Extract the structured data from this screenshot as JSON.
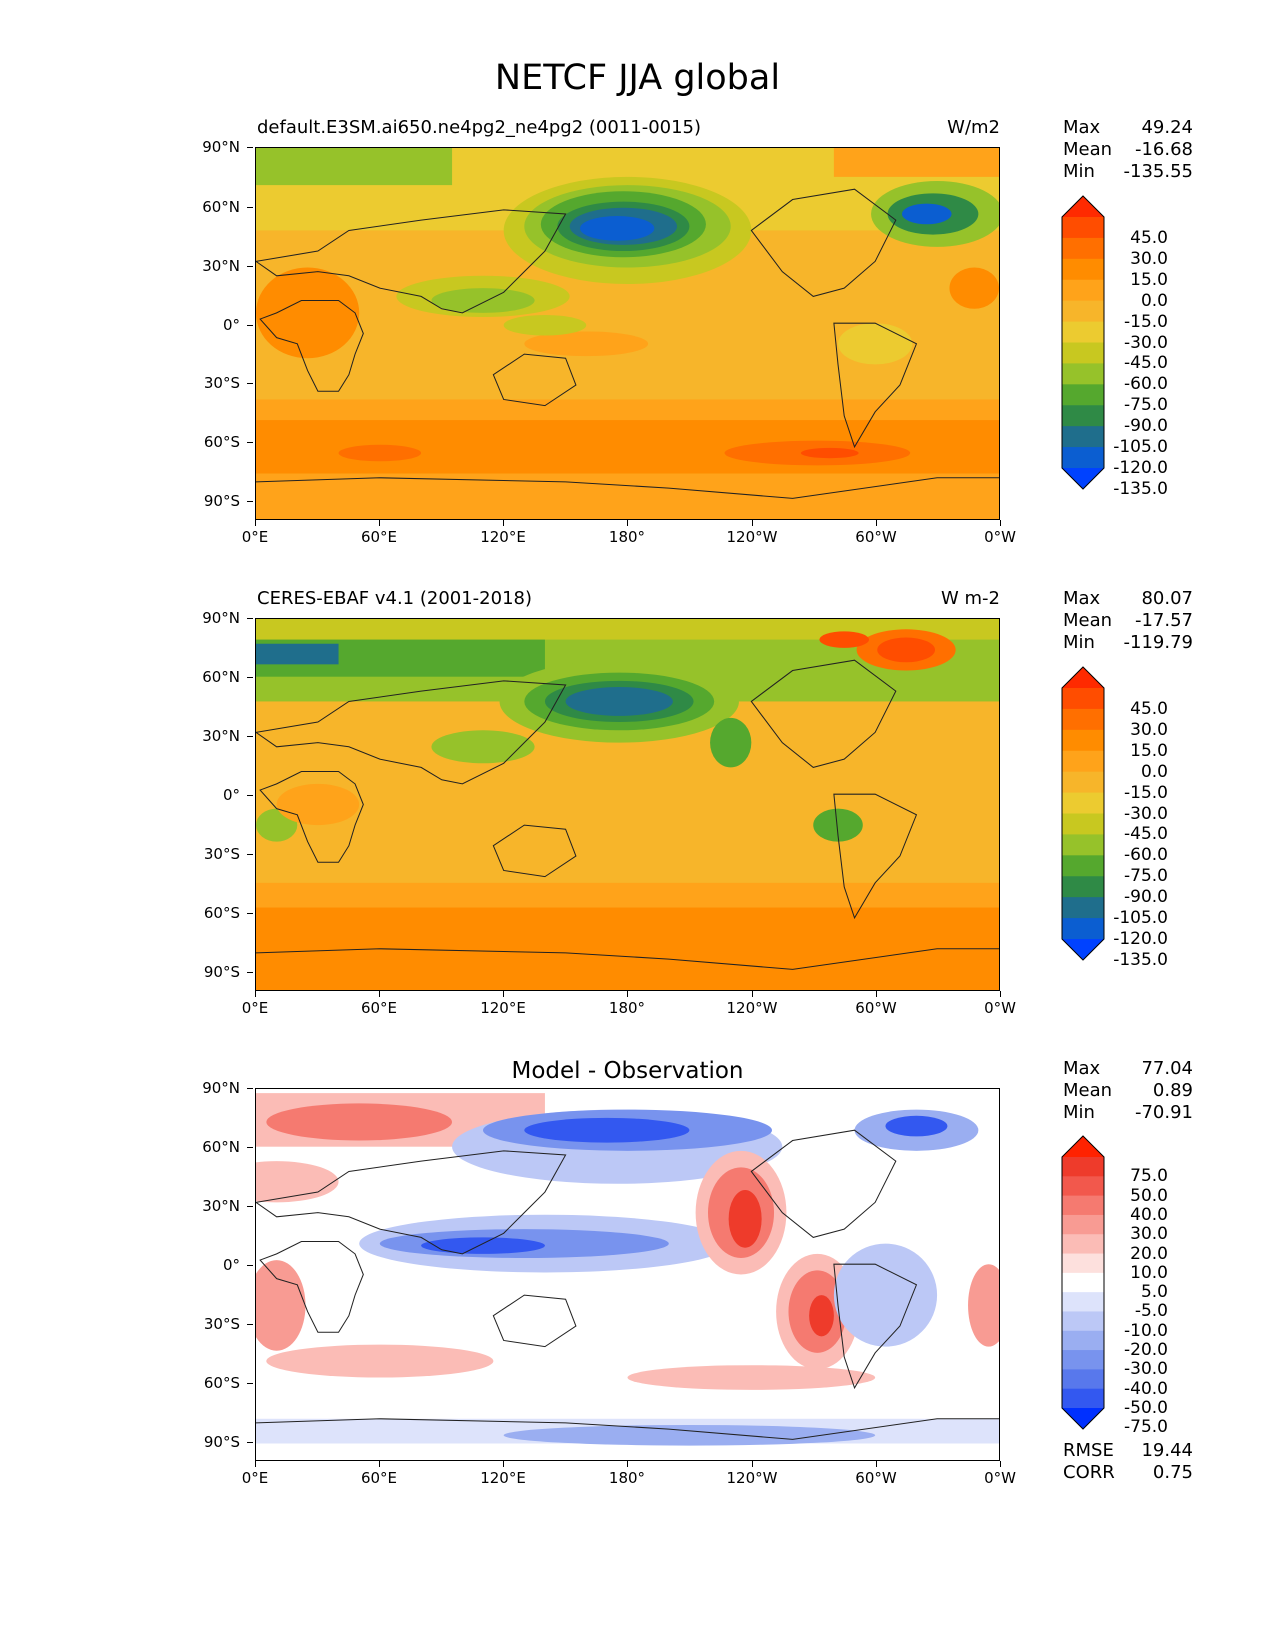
{
  "figure": {
    "title": "NETCF JJA global",
    "panels": [
      {
        "title_left": "default.E3SM.ai650.ne4pg2_ne4pg2 (0011-0015)",
        "title_right": "W/m2",
        "title_center": "",
        "stats": {
          "max_label": "Max",
          "max": "49.24",
          "mean_label": "Mean",
          "mean": "-16.68",
          "min_label": "Min",
          "min": "-135.55"
        }
      },
      {
        "title_left": "CERES-EBAF v4.1 (2001-2018)",
        "title_right": "W m-2",
        "title_center": "",
        "stats": {
          "max_label": "Max",
          "max": "80.07",
          "mean_label": "Mean",
          "mean": "-17.57",
          "min_label": "Min",
          "min": "-119.79"
        }
      },
      {
        "title_left": "",
        "title_right": "",
        "title_center": "Model - Observation",
        "stats": {
          "max_label": "Max",
          "max": "77.04",
          "mean_label": "Mean",
          "mean": "0.89",
          "min_label": "Min",
          "min": "-70.91"
        },
        "metrics": {
          "rmse_label": "RMSE",
          "rmse": "19.44",
          "corr_label": "CORR",
          "corr": "0.75"
        }
      }
    ],
    "y_ticks": [
      "90°N",
      "60°N",
      "30°N",
      "0°",
      "30°S",
      "60°S",
      "90°S"
    ],
    "x_ticks": [
      "0°E",
      "60°E",
      "120°E",
      "180°",
      "120°W",
      "60°W",
      "0°W"
    ]
  },
  "chart_data": [
    {
      "type": "heatmap",
      "title": "default.E3SM.ai650.ne4pg2_ne4pg2 (0011-0015)",
      "units": "W/m2",
      "xlim": [
        0,
        360
      ],
      "ylim": [
        -90,
        90
      ],
      "colorbar_levels": [
        "45.0",
        "30.0",
        "15.0",
        "0.0",
        "-15.0",
        "-30.0",
        "-45.0",
        "-60.0",
        "-75.0",
        "-90.0",
        "-105.0",
        "-120.0",
        "-135.0"
      ],
      "colorbar_colors": [
        "#ff2a00",
        "#ff4d00",
        "#ff6f00",
        "#ff8c00",
        "#ffa31a",
        "#f7b52a",
        "#eccb30",
        "#c8c820",
        "#96c22a",
        "#55a82e",
        "#2f8a46",
        "#1f6e8c",
        "#0b5ed1",
        "#0042ff"
      ],
      "stats": {
        "max": 49.24,
        "mean": -16.68,
        "min": -135.55
      }
    },
    {
      "type": "heatmap",
      "title": "CERES-EBAF v4.1 (2001-2018)",
      "units": "W m-2",
      "xlim": [
        0,
        360
      ],
      "ylim": [
        -90,
        90
      ],
      "colorbar_levels": [
        "45.0",
        "30.0",
        "15.0",
        "0.0",
        "-15.0",
        "-30.0",
        "-45.0",
        "-60.0",
        "-75.0",
        "-90.0",
        "-105.0",
        "-120.0",
        "-135.0"
      ],
      "colorbar_colors": [
        "#ff2a00",
        "#ff4d00",
        "#ff6f00",
        "#ff8c00",
        "#ffa31a",
        "#f7b52a",
        "#eccb30",
        "#c8c820",
        "#96c22a",
        "#55a82e",
        "#2f8a46",
        "#1f6e8c",
        "#0b5ed1",
        "#0042ff"
      ],
      "stats": {
        "max": 80.07,
        "mean": -17.57,
        "min": -119.79
      }
    },
    {
      "type": "heatmap",
      "title": "Model - Observation",
      "xlim": [
        0,
        360
      ],
      "ylim": [
        -90,
        90
      ],
      "colorbar_levels": [
        "75.0",
        "50.0",
        "40.0",
        "30.0",
        "20.0",
        "10.0",
        "5.0",
        "-5.0",
        "-10.0",
        "-20.0",
        "-30.0",
        "-40.0",
        "-50.0",
        "-75.0"
      ],
      "colorbar_colors": [
        "#ff2200",
        "#ee3b2b",
        "#f2584c",
        "#f57a70",
        "#f89b93",
        "#fbbcb6",
        "#fde0dd",
        "#ffffff",
        "#dde3fb",
        "#bcc8f6",
        "#9aaef1",
        "#7893ee",
        "#5878ec",
        "#3358f0",
        "#0030ff"
      ],
      "stats": {
        "max": 77.04,
        "mean": 0.89,
        "min": -70.91
      },
      "rmse": 19.44,
      "corr": 0.75
    }
  ]
}
